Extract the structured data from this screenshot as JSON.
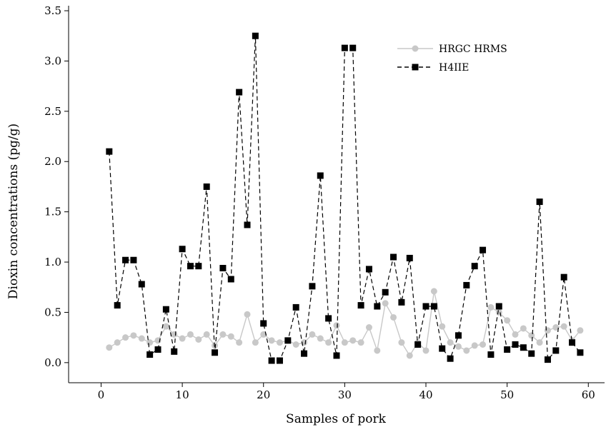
{
  "chart_data": {
    "type": "line",
    "title": "",
    "xlabel": "Samples of pork",
    "ylabel": "Dioxin concentrations (pg/g)",
    "xlim": [
      -4,
      62
    ],
    "ylim": [
      -0.2,
      3.55
    ],
    "xticks": [
      0,
      10,
      20,
      30,
      40,
      50,
      60
    ],
    "yticks": [
      0.0,
      0.5,
      1.0,
      1.5,
      2.0,
      2.5,
      3.0,
      3.5
    ],
    "ytick_labels": [
      "0.0",
      "0.5",
      "1.0",
      "1.5",
      "2.0",
      "2.5",
      "3.0",
      "3.5"
    ],
    "grid": false,
    "legend_position": "top-right",
    "x": [
      1,
      2,
      3,
      4,
      5,
      6,
      7,
      8,
      9,
      10,
      11,
      12,
      13,
      14,
      15,
      16,
      17,
      18,
      19,
      20,
      21,
      22,
      23,
      24,
      25,
      26,
      27,
      28,
      29,
      30,
      31,
      32,
      33,
      34,
      35,
      36,
      37,
      38,
      39,
      40,
      41,
      42,
      43,
      44,
      45,
      46,
      47,
      48,
      49,
      50,
      51,
      52,
      53,
      54,
      55,
      56,
      57,
      58,
      59
    ],
    "series": [
      {
        "name": "HRGC HRMS",
        "color": "#c8c8c8",
        "marker": "circle",
        "line_style": "solid",
        "values": [
          0.15,
          0.2,
          0.25,
          0.27,
          0.24,
          0.2,
          0.22,
          0.36,
          0.28,
          0.24,
          0.28,
          0.23,
          0.28,
          0.17,
          0.28,
          0.26,
          0.2,
          0.48,
          0.2,
          0.28,
          0.22,
          0.2,
          0.22,
          0.18,
          0.2,
          0.28,
          0.24,
          0.2,
          0.37,
          0.2,
          0.22,
          0.2,
          0.35,
          0.12,
          0.59,
          0.45,
          0.2,
          0.07,
          0.2,
          0.12,
          0.71,
          0.36,
          0.2,
          0.16,
          0.12,
          0.17,
          0.18,
          0.55,
          0.5,
          0.42,
          0.28,
          0.34,
          0.27,
          0.2,
          0.32,
          0.35,
          0.36,
          0.22,
          0.32
        ]
      },
      {
        "name": "H4IIE",
        "color": "#000000",
        "marker": "square",
        "line_style": "dashed",
        "values": [
          2.1,
          0.57,
          1.02,
          1.02,
          0.78,
          0.08,
          0.13,
          0.53,
          0.11,
          1.13,
          0.96,
          0.96,
          1.75,
          0.1,
          0.94,
          0.83,
          2.69,
          1.37,
          3.25,
          0.39,
          0.02,
          0.02,
          0.22,
          0.55,
          0.09,
          0.76,
          1.86,
          0.44,
          0.07,
          3.13,
          3.13,
          0.57,
          0.93,
          0.56,
          0.7,
          1.05,
          0.6,
          1.04,
          0.18,
          0.56,
          0.56,
          0.14,
          0.04,
          0.27,
          0.77,
          0.96,
          1.12,
          0.08,
          0.56,
          0.13,
          0.18,
          0.15,
          0.09,
          1.6,
          0.03,
          0.12,
          0.85,
          0.2,
          0.1
        ]
      }
    ]
  }
}
